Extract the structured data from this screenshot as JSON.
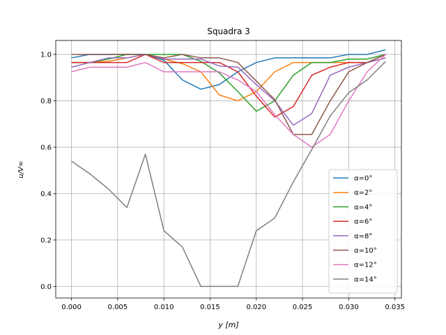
{
  "chart_data": {
    "type": "line",
    "title": "Squadra 3",
    "xlabel": "y [m]",
    "ylabel": "u/V∞",
    "xlim": [
      -0.0017,
      0.0357
    ],
    "ylim": [
      -0.05,
      1.06
    ],
    "xticks": [
      0.0,
      0.005,
      0.01,
      0.015,
      0.02,
      0.025,
      0.03,
      0.035
    ],
    "xtick_labels": [
      "0.000",
      "0.005",
      "0.010",
      "0.015",
      "0.020",
      "0.025",
      "0.030",
      "0.035"
    ],
    "yticks": [
      0.0,
      0.2,
      0.4,
      0.6,
      0.8,
      1.0
    ],
    "ytick_labels": [
      "0.0",
      "0.2",
      "0.4",
      "0.6",
      "0.8",
      "1.0"
    ],
    "grid": true,
    "legend_position": "lower-right",
    "x": [
      0.0,
      0.002,
      0.004,
      0.006,
      0.008,
      0.01,
      0.012,
      0.014,
      0.016,
      0.018,
      0.02,
      0.022,
      0.024,
      0.026,
      0.028,
      0.03,
      0.032,
      0.034
    ],
    "series": [
      {
        "name": "α=0°",
        "color": "#1f77b4",
        "values": [
          0.985,
          1.0,
          1.0,
          1.0,
          1.0,
          0.975,
          0.89,
          0.85,
          0.87,
          0.925,
          0.965,
          0.985,
          0.985,
          0.985,
          0.985,
          1.0,
          1.0,
          1.02
        ]
      },
      {
        "name": "α=2°",
        "color": "#ff7f0e",
        "values": [
          0.965,
          0.965,
          0.97,
          0.985,
          1.0,
          0.98,
          0.96,
          0.925,
          0.825,
          0.8,
          0.84,
          0.925,
          0.965,
          0.965,
          0.965,
          0.965,
          0.965,
          1.0
        ]
      },
      {
        "name": "α=4°",
        "color": "#2ca02c",
        "values": [
          0.965,
          0.965,
          0.98,
          1.0,
          1.0,
          1.0,
          1.0,
          0.97,
          0.92,
          0.84,
          0.755,
          0.8,
          0.91,
          0.965,
          0.965,
          0.98,
          0.98,
          1.0
        ]
      },
      {
        "name": "α=6°",
        "color": "#d62728",
        "values": [
          0.965,
          0.965,
          0.965,
          0.965,
          1.0,
          0.965,
          0.965,
          0.965,
          0.965,
          0.925,
          0.82,
          0.73,
          0.775,
          0.91,
          0.945,
          0.965,
          0.965,
          0.985
        ]
      },
      {
        "name": "α=8°",
        "color": "#9467bd",
        "values": [
          0.945,
          0.965,
          0.985,
          0.985,
          1.0,
          0.98,
          0.98,
          0.98,
          0.95,
          0.945,
          0.87,
          0.8,
          0.695,
          0.745,
          0.91,
          0.945,
          0.965,
          0.985
        ]
      },
      {
        "name": "α=10°",
        "color": "#8c564b",
        "values": [
          1.0,
          1.0,
          1.0,
          1.0,
          1.0,
          0.985,
          1.0,
          0.985,
          0.985,
          0.965,
          0.885,
          0.805,
          0.655,
          0.655,
          0.8,
          0.925,
          0.965,
          1.0
        ]
      },
      {
        "name": "α=12°",
        "color": "#e377c2",
        "values": [
          0.925,
          0.945,
          0.945,
          0.945,
          0.965,
          0.925,
          0.925,
          0.925,
          0.925,
          0.89,
          0.84,
          0.74,
          0.655,
          0.6,
          0.655,
          0.8,
          0.925,
          1.0
        ]
      },
      {
        "name": "α=14°",
        "color": "#7f7f7f",
        "values": [
          0.54,
          0.485,
          0.42,
          0.34,
          0.57,
          0.24,
          0.17,
          0.0,
          0.0,
          0.0,
          0.24,
          0.295,
          0.45,
          0.59,
          0.735,
          0.835,
          0.89,
          0.97
        ]
      }
    ]
  }
}
